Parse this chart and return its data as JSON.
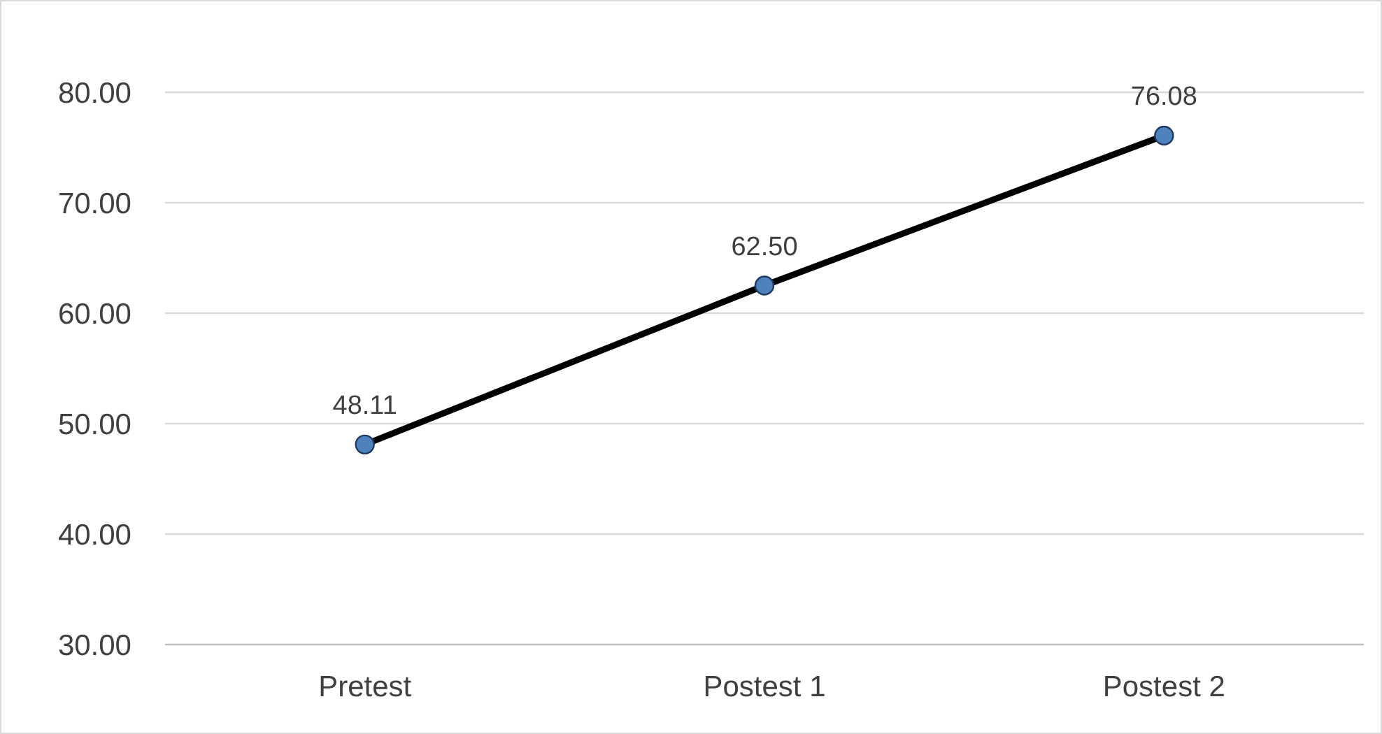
{
  "chart_data": {
    "type": "line",
    "categories": [
      "Pretest",
      "Postest 1",
      "Postest 2"
    ],
    "series": [
      {
        "color": "#000000",
        "values": [
          48.11,
          62.5,
          76.08
        ],
        "value_labels": [
          "48.11",
          "62.50",
          "76.08"
        ]
      }
    ],
    "ylim": [
      30,
      80
    ],
    "yticks": [
      {
        "value": 30,
        "label": "30.00"
      },
      {
        "value": 40,
        "label": "40.00"
      },
      {
        "value": 50,
        "label": "50.00"
      },
      {
        "value": 60,
        "label": "60.00"
      },
      {
        "value": 70,
        "label": "70.00"
      },
      {
        "value": 80,
        "label": "80.00"
      }
    ],
    "grid": "y",
    "marker": "circle",
    "line_style": "solid"
  }
}
